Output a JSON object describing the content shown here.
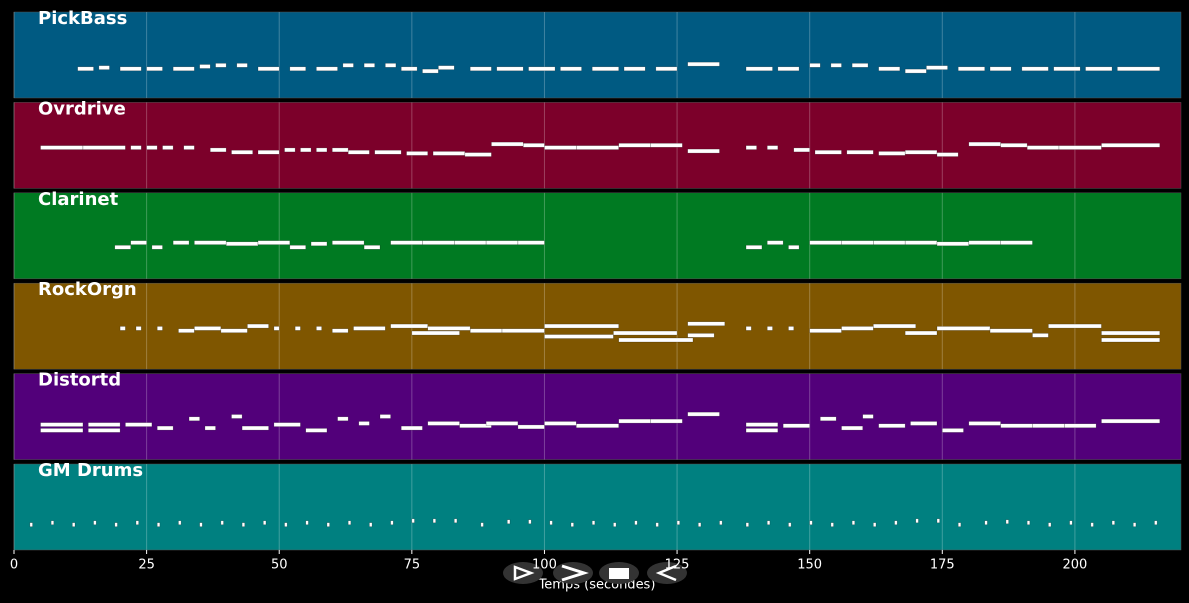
{
  "chart_data": {
    "type": "piano-roll",
    "xlabel": "Temps (secondes)",
    "xlim": [
      0,
      220
    ],
    "xticks": [
      0,
      25,
      50,
      75,
      100,
      125,
      150,
      175,
      200
    ],
    "grid": true,
    "series": [
      {
        "name": "PickBass",
        "color": "#005a82",
        "ylim": [
          20,
          70
        ],
        "notes": [
          [
            12,
            3,
            40
          ],
          [
            16,
            2,
            41
          ],
          [
            20,
            4,
            40
          ],
          [
            25,
            3,
            40
          ],
          [
            30,
            4,
            40
          ],
          [
            35,
            2,
            42
          ],
          [
            38,
            2,
            43
          ],
          [
            42,
            2,
            43
          ],
          [
            46,
            4,
            40
          ],
          [
            52,
            3,
            40
          ],
          [
            57,
            4,
            40
          ],
          [
            62,
            2,
            43
          ],
          [
            66,
            2,
            43
          ],
          [
            70,
            2,
            43
          ],
          [
            73,
            3,
            40
          ],
          [
            77,
            3,
            38
          ],
          [
            80,
            3,
            41
          ],
          [
            86,
            4,
            40
          ],
          [
            91,
            5,
            40
          ],
          [
            97,
            5,
            40
          ],
          [
            103,
            4,
            40
          ],
          [
            109,
            5,
            40
          ],
          [
            115,
            4,
            40
          ],
          [
            121,
            4,
            40
          ],
          [
            127,
            6,
            44
          ],
          [
            138,
            5,
            40
          ],
          [
            144,
            4,
            40
          ],
          [
            150,
            2,
            43
          ],
          [
            154,
            2,
            43
          ],
          [
            158,
            3,
            43
          ],
          [
            163,
            4,
            40
          ],
          [
            168,
            4,
            38
          ],
          [
            172,
            4,
            41
          ],
          [
            178,
            5,
            40
          ],
          [
            184,
            4,
            40
          ],
          [
            190,
            5,
            40
          ],
          [
            196,
            5,
            40
          ],
          [
            202,
            5,
            40
          ],
          [
            208,
            8,
            40
          ]
        ]
      },
      {
        "name": "Ovrdrive",
        "color": "#7c002a",
        "ylim": [
          30,
          80
        ],
        "notes": [
          [
            5,
            8,
            60
          ],
          [
            13,
            8,
            60
          ],
          [
            22,
            2,
            60
          ],
          [
            25,
            2,
            60
          ],
          [
            28,
            2,
            60
          ],
          [
            32,
            2,
            60
          ],
          [
            37,
            3,
            58
          ],
          [
            41,
            4,
            56
          ],
          [
            46,
            4,
            56
          ],
          [
            51,
            2,
            58
          ],
          [
            54,
            2,
            58
          ],
          [
            57,
            2,
            58
          ],
          [
            60,
            3,
            58
          ],
          [
            63,
            4,
            56
          ],
          [
            68,
            5,
            56
          ],
          [
            74,
            4,
            55
          ],
          [
            79,
            6,
            55
          ],
          [
            85,
            5,
            54
          ],
          [
            90,
            6,
            63
          ],
          [
            96,
            4,
            62
          ],
          [
            100,
            6,
            60
          ],
          [
            106,
            8,
            60
          ],
          [
            114,
            6,
            62
          ],
          [
            120,
            6,
            62
          ],
          [
            127,
            6,
            57
          ],
          [
            138,
            2,
            60
          ],
          [
            142,
            2,
            60
          ],
          [
            147,
            3,
            58
          ],
          [
            151,
            5,
            56
          ],
          [
            157,
            5,
            56
          ],
          [
            163,
            5,
            55
          ],
          [
            168,
            6,
            56
          ],
          [
            174,
            4,
            54
          ],
          [
            180,
            6,
            63
          ],
          [
            186,
            5,
            62
          ],
          [
            191,
            6,
            60
          ],
          [
            197,
            8,
            60
          ],
          [
            205,
            11,
            62
          ]
        ]
      },
      {
        "name": "Clarinet",
        "color": "#007a22",
        "ylim": [
          40,
          90
        ],
        "notes": [
          [
            19,
            3,
            62
          ],
          [
            22,
            3,
            66
          ],
          [
            26,
            2,
            62
          ],
          [
            30,
            3,
            66
          ],
          [
            34,
            6,
            66
          ],
          [
            40,
            6,
            65
          ],
          [
            46,
            6,
            66
          ],
          [
            52,
            3,
            62
          ],
          [
            56,
            3,
            65
          ],
          [
            60,
            6,
            66
          ],
          [
            66,
            3,
            62
          ],
          [
            71,
            6,
            66
          ],
          [
            77,
            6,
            66
          ],
          [
            83,
            6,
            66
          ],
          [
            89,
            6,
            66
          ],
          [
            95,
            5,
            66
          ],
          [
            138,
            3,
            62
          ],
          [
            142,
            3,
            66
          ],
          [
            146,
            2,
            62
          ],
          [
            150,
            6,
            66
          ],
          [
            156,
            6,
            66
          ],
          [
            162,
            6,
            66
          ],
          [
            168,
            6,
            66
          ],
          [
            174,
            6,
            65
          ],
          [
            180,
            6,
            66
          ],
          [
            186,
            6,
            66
          ]
        ]
      },
      {
        "name": "RockOrgn",
        "color": "#7f5600",
        "ylim": [
          40,
          90
        ],
        "notes": [
          [
            20,
            1,
            70
          ],
          [
            23,
            1,
            70
          ],
          [
            27,
            1,
            70
          ],
          [
            31,
            3,
            68
          ],
          [
            34,
            5,
            70
          ],
          [
            39,
            5,
            68
          ],
          [
            44,
            4,
            72
          ],
          [
            49,
            1,
            70
          ],
          [
            53,
            1,
            70
          ],
          [
            57,
            1,
            70
          ],
          [
            60,
            3,
            68
          ],
          [
            64,
            6,
            70
          ],
          [
            71,
            7,
            72
          ],
          [
            78,
            8,
            70
          ],
          [
            75,
            9,
            66
          ],
          [
            86,
            6,
            68
          ],
          [
            92,
            8,
            68
          ],
          [
            100,
            14,
            72
          ],
          [
            100,
            13,
            63
          ],
          [
            113,
            12,
            66
          ],
          [
            114,
            14,
            60
          ],
          [
            127,
            5,
            64
          ],
          [
            127,
            7,
            74
          ],
          [
            138,
            1,
            70
          ],
          [
            142,
            1,
            70
          ],
          [
            146,
            1,
            70
          ],
          [
            150,
            6,
            68
          ],
          [
            156,
            6,
            70
          ],
          [
            162,
            8,
            72
          ],
          [
            168,
            6,
            66
          ],
          [
            174,
            10,
            70
          ],
          [
            184,
            8,
            68
          ],
          [
            192,
            3,
            64
          ],
          [
            195,
            10,
            72
          ],
          [
            205,
            11,
            66
          ],
          [
            205,
            11,
            60
          ]
        ]
      },
      {
        "name": "Distortd",
        "color": "#52007a",
        "ylim": [
          40,
          90
        ],
        "notes": [
          [
            5,
            8,
            65
          ],
          [
            5,
            8,
            60
          ],
          [
            14,
            6,
            65
          ],
          [
            14,
            6,
            60
          ],
          [
            21,
            5,
            65
          ],
          [
            27,
            3,
            62
          ],
          [
            33,
            2,
            70
          ],
          [
            36,
            2,
            62
          ],
          [
            41,
            2,
            72
          ],
          [
            43,
            5,
            62
          ],
          [
            49,
            5,
            65
          ],
          [
            55,
            4,
            60
          ],
          [
            61,
            2,
            70
          ],
          [
            65,
            2,
            66
          ],
          [
            69,
            2,
            72
          ],
          [
            73,
            4,
            62
          ],
          [
            78,
            6,
            66
          ],
          [
            84,
            6,
            64
          ],
          [
            89,
            6,
            66
          ],
          [
            95,
            5,
            63
          ],
          [
            100,
            6,
            66
          ],
          [
            106,
            8,
            64
          ],
          [
            114,
            6,
            68
          ],
          [
            120,
            6,
            68
          ],
          [
            127,
            6,
            74
          ],
          [
            138,
            6,
            65
          ],
          [
            138,
            6,
            60
          ],
          [
            145,
            5,
            64
          ],
          [
            152,
            3,
            70
          ],
          [
            156,
            4,
            62
          ],
          [
            160,
            2,
            72
          ],
          [
            163,
            5,
            64
          ],
          [
            169,
            5,
            66
          ],
          [
            175,
            4,
            60
          ],
          [
            180,
            6,
            66
          ],
          [
            186,
            6,
            64
          ],
          [
            192,
            6,
            64
          ],
          [
            198,
            6,
            64
          ],
          [
            205,
            11,
            68
          ]
        ]
      },
      {
        "name": "GM Drums",
        "color": "#008080",
        "ylim": [
          30,
          90
        ],
        "notes": [
          [
            3,
            0.5,
            50
          ],
          [
            7,
            0.5,
            52
          ],
          [
            11,
            0.5,
            50
          ],
          [
            15,
            0.5,
            52
          ],
          [
            19,
            0.5,
            50
          ],
          [
            23,
            0.5,
            52
          ],
          [
            27,
            0.5,
            50
          ],
          [
            31,
            0.5,
            52
          ],
          [
            35,
            0.5,
            50
          ],
          [
            39,
            0.5,
            52
          ],
          [
            43,
            0.5,
            50
          ],
          [
            47,
            0.5,
            52
          ],
          [
            51,
            0.5,
            50
          ],
          [
            55,
            0.5,
            52
          ],
          [
            59,
            0.5,
            50
          ],
          [
            63,
            0.5,
            52
          ],
          [
            67,
            0.5,
            50
          ],
          [
            71,
            0.5,
            52
          ],
          [
            75,
            0.5,
            54
          ],
          [
            79,
            0.5,
            54
          ],
          [
            83,
            0.5,
            54
          ],
          [
            88,
            0.5,
            50
          ],
          [
            93,
            0.5,
            53
          ],
          [
            97,
            0.5,
            53
          ],
          [
            101,
            0.5,
            52
          ],
          [
            105,
            0.5,
            50
          ],
          [
            109,
            0.5,
            52
          ],
          [
            113,
            0.5,
            50
          ],
          [
            117,
            0.5,
            52
          ],
          [
            121,
            0.5,
            50
          ],
          [
            125,
            0.5,
            52
          ],
          [
            129,
            0.5,
            50
          ],
          [
            133,
            0.5,
            52
          ],
          [
            138,
            0.5,
            50
          ],
          [
            142,
            0.5,
            52
          ],
          [
            146,
            0.5,
            50
          ],
          [
            150,
            0.5,
            52
          ],
          [
            154,
            0.5,
            50
          ],
          [
            158,
            0.5,
            52
          ],
          [
            162,
            0.5,
            50
          ],
          [
            166,
            0.5,
            52
          ],
          [
            170,
            0.5,
            54
          ],
          [
            174,
            0.5,
            54
          ],
          [
            178,
            0.5,
            50
          ],
          [
            183,
            0.5,
            52
          ],
          [
            187,
            0.5,
            53
          ],
          [
            191,
            0.5,
            52
          ],
          [
            195,
            0.5,
            50
          ],
          [
            199,
            0.5,
            52
          ],
          [
            203,
            0.5,
            50
          ],
          [
            207,
            0.5,
            52
          ],
          [
            211,
            0.5,
            50
          ],
          [
            215,
            0.5,
            52
          ]
        ]
      }
    ]
  }
}
